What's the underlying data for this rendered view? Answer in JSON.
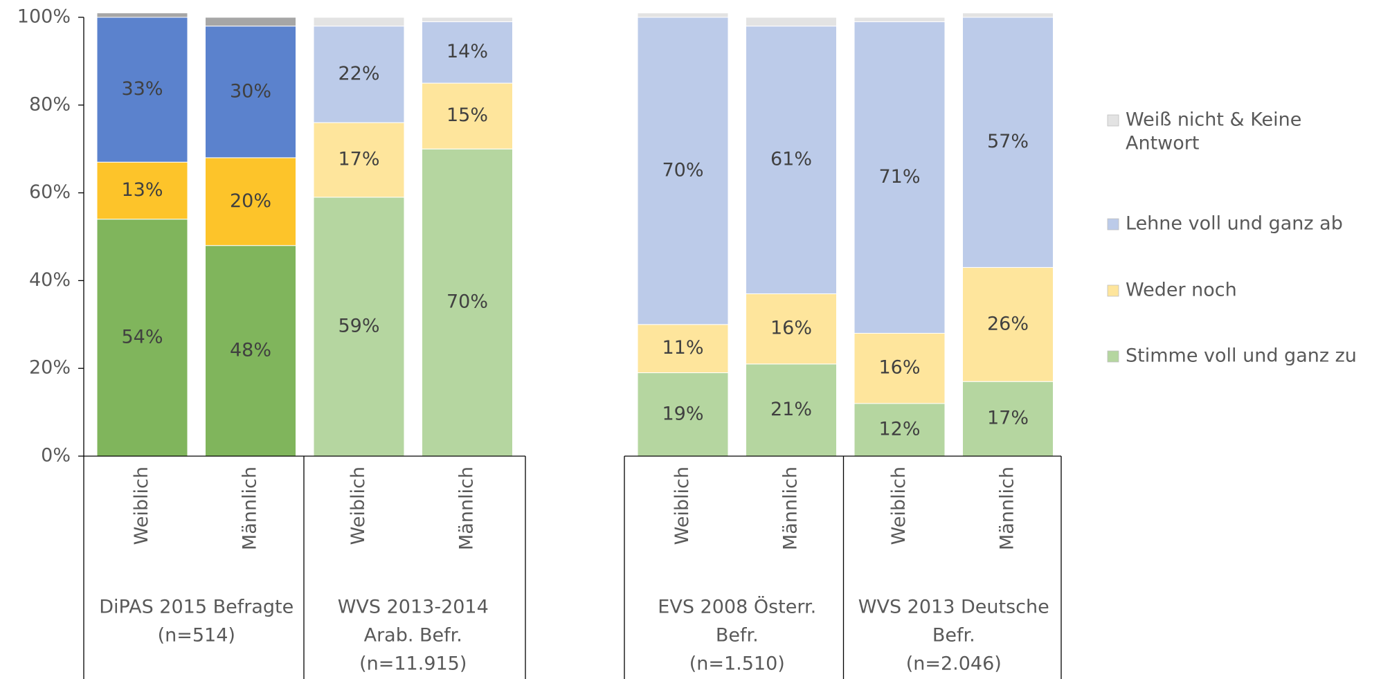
{
  "chart_data": {
    "type": "stacked_bar",
    "categories": [
      "Weiblich",
      "Männlich",
      "Weiblich",
      "Männlich",
      "Weiblich",
      "Männlich",
      "Weiblich",
      "Männlich"
    ],
    "groups": [
      {
        "label": [
          "DiPAS 2015 Befragte",
          "(n=514)"
        ]
      },
      {
        "label": [
          "WVS 2013-2014",
          "Arab. Befr.",
          "(n=11.915)"
        ]
      },
      {
        "label": [
          "EVS 2008 Österr.",
          "Befr.",
          "(n=1.510)"
        ]
      },
      {
        "label": [
          "WVS 2013 Deutsche",
          "Befr.",
          "(n=2.046)"
        ]
      }
    ],
    "series": [
      {
        "name": "Stimme voll und ganz zu",
        "color": "#b5d6a0",
        "colors": [
          "#80b55c",
          "#80b55c",
          "#b5d6a0",
          "#b5d6a0",
          "#b5d6a0",
          "#b5d6a0",
          "#b5d6a0",
          "#b5d6a0"
        ],
        "values": [
          54,
          48,
          59,
          70,
          19,
          21,
          12,
          17
        ],
        "value_labels": [
          "54%",
          "48%",
          "59%",
          "70%",
          "19%",
          "21%",
          "12%",
          "17%"
        ]
      },
      {
        "name": "Weder noch",
        "color": "#fee59c",
        "colors": [
          "#fdc42a",
          "#fdc42a",
          "#fee59c",
          "#fee59c",
          "#fee59c",
          "#fee59c",
          "#fee59c",
          "#fee59c"
        ],
        "values": [
          13,
          20,
          17,
          15,
          11,
          16,
          16,
          26
        ],
        "value_labels": [
          "13%",
          "20%",
          "17%",
          "15%",
          "11%",
          "16%",
          "16%",
          "26%"
        ]
      },
      {
        "name": "Lehne voll und ganz ab",
        "color": "#bccbe9",
        "colors": [
          "#5b82cd",
          "#5b82cd",
          "#bccbe9",
          "#bccbe9",
          "#bccbe9",
          "#bccbe9",
          "#bccbe9",
          "#bccbe9"
        ],
        "values": [
          33,
          30,
          22,
          14,
          70,
          61,
          71,
          57
        ],
        "value_labels": [
          "33%",
          "30%",
          "22%",
          "14%",
          "70%",
          "61%",
          "71%",
          "57%"
        ]
      },
      {
        "name": [
          "Weiß nicht & Keine",
          "Antwort"
        ],
        "color": "#e3e3e3",
        "colors": [
          "#a6a6a6",
          "#a6a6a6",
          "#e3e3e3",
          "#e3e3e3",
          "#e3e3e3",
          "#e3e3e3",
          "#e3e3e3",
          "#e3e3e3"
        ],
        "values": [
          1,
          2,
          2,
          1,
          1,
          2,
          1,
          1
        ]
      }
    ],
    "ylim": [
      0,
      100
    ],
    "yticks": [
      {
        "value": 0,
        "label": "0%"
      },
      {
        "value": 20,
        "label": "20%"
      },
      {
        "value": 40,
        "label": "40%"
      },
      {
        "value": 60,
        "label": "60%"
      },
      {
        "value": 80,
        "label": "80%"
      },
      {
        "value": 100,
        "label": "100%"
      }
    ],
    "legend": "right"
  }
}
